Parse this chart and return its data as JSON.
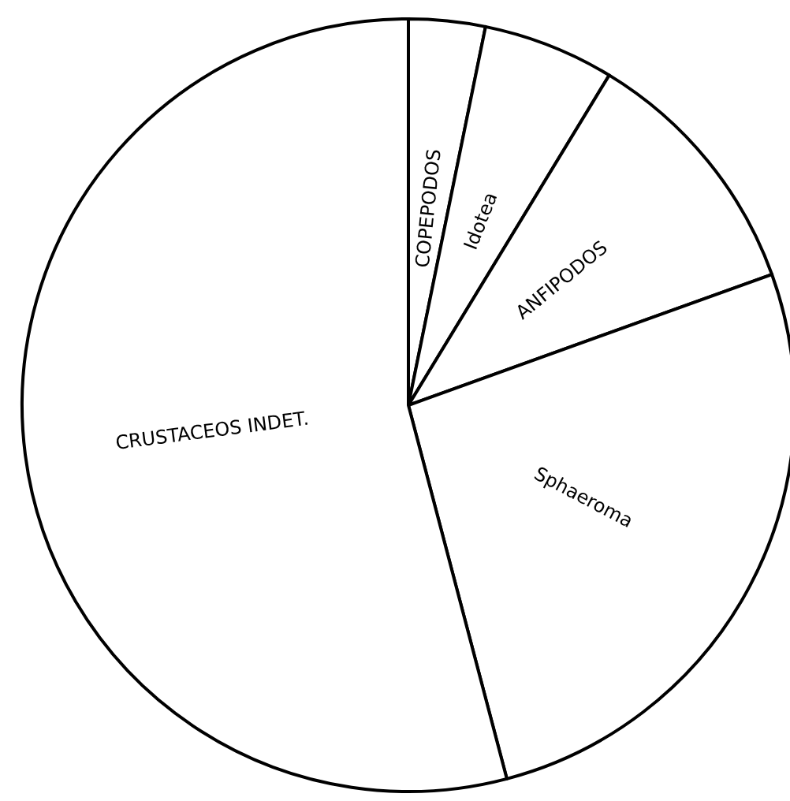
{
  "chart_data": {
    "type": "pie",
    "categories": [
      "COPEPODOS",
      "Idotea",
      "ANFIPODOS",
      "Sphaeroma",
      "CRUSTACEOS INDET."
    ],
    "values": [
      3.2,
      5.5,
      10.8,
      26.4,
      54.1
    ],
    "colors": [
      "#ffffff",
      "#ffffff",
      "#ffffff",
      "#ffffff",
      "#ffffff"
    ]
  }
}
